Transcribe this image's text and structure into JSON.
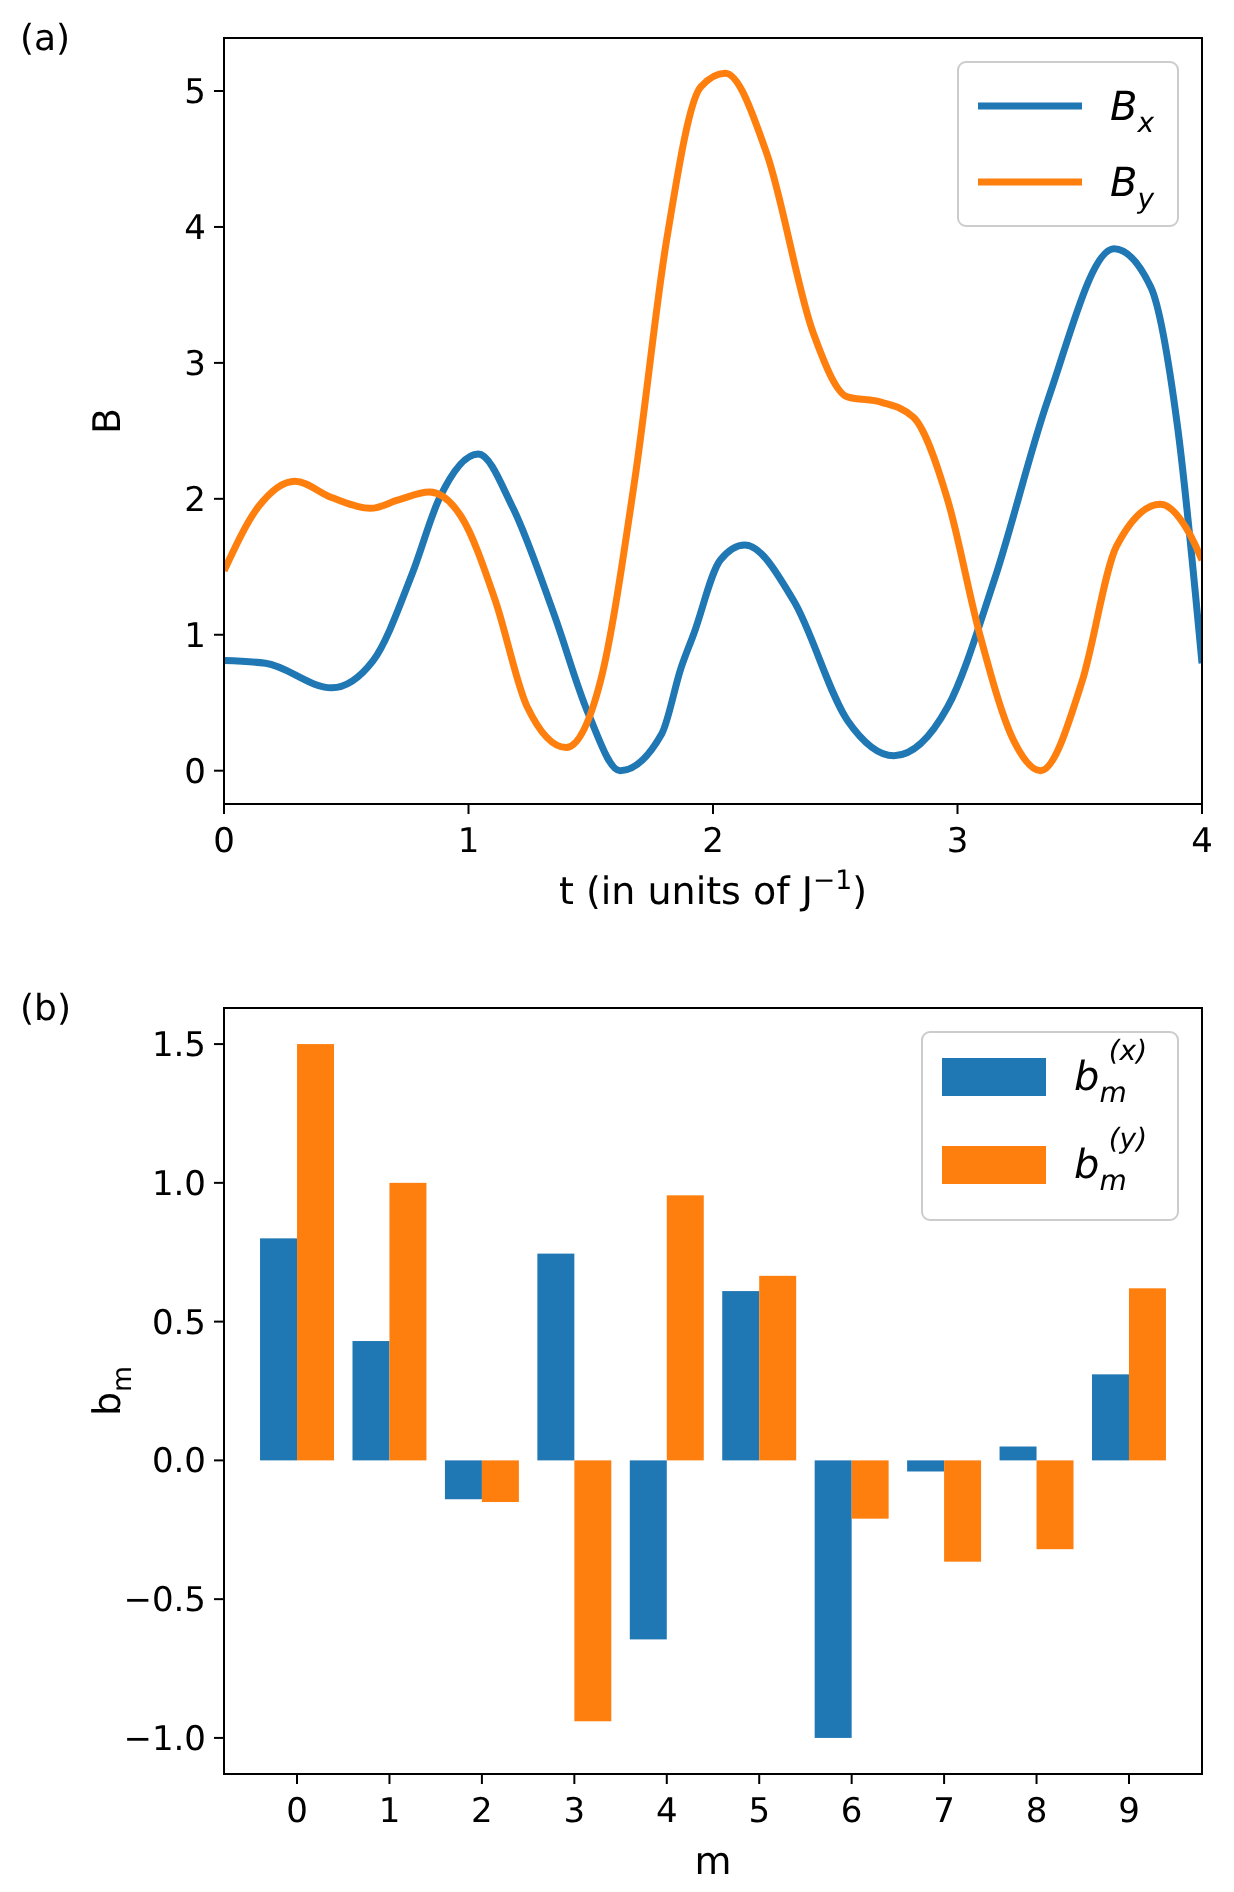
{
  "chart_data": [
    {
      "type": "line",
      "title": "(a)",
      "xlabel": "t (in units of J$^{−1}$)",
      "ylabel": "B",
      "xlim": [
        0,
        4
      ],
      "xticks": [
        0,
        1,
        2,
        3,
        4
      ],
      "ylim": [
        -0.245,
        5.39
      ],
      "yticks": [
        0,
        1,
        2,
        3,
        4,
        5
      ],
      "legend": "top right",
      "grid": false,
      "series": [
        {
          "name": "B$_{x}$",
          "color": "#1f77b4",
          "x": [
            0,
            0.17,
            0.44,
            0.61,
            0.77,
            0.88,
            1.04,
            1.18,
            1.35,
            1.49,
            1.62,
            1.79,
            1.87,
            1.92,
            2.03,
            2.13,
            2.33,
            2.55,
            2.74,
            2.96,
            3.15,
            3.37,
            3.64,
            3.79,
            3.9,
            4.0
          ],
          "values": [
            0.81,
            0.79,
            0.61,
            0.81,
            1.45,
            2.0,
            2.33,
            1.94,
            1.15,
            0.42,
            0.0,
            0.27,
            0.76,
            1.0,
            1.55,
            1.66,
            1.25,
            0.37,
            0.11,
            0.47,
            1.4,
            2.73,
            3.84,
            3.56,
            2.53,
            0.79
          ]
        },
        {
          "name": "B$_{y}$",
          "color": "#ff7f0e",
          "x": [
            0,
            0.14,
            0.29,
            0.44,
            0.6,
            0.71,
            0.84,
            0.97,
            1.11,
            1.24,
            1.4,
            1.54,
            1.68,
            1.81,
            1.95,
            2.05,
            2.22,
            2.41,
            2.55,
            2.69,
            2.82,
            2.96,
            3.09,
            3.23,
            3.34,
            3.51,
            3.65,
            3.83,
            3.95,
            4.0
          ],
          "values": [
            1.47,
            1.94,
            2.13,
            2.01,
            1.93,
            1.99,
            2.05,
            1.87,
            1.25,
            0.47,
            0.17,
            0.66,
            2.14,
            3.9,
            5.03,
            5.13,
            4.54,
            3.22,
            2.75,
            2.71,
            2.6,
            1.99,
            1.01,
            0.22,
            0.0,
            0.66,
            1.65,
            1.96,
            1.74,
            1.55
          ]
        }
      ]
    },
    {
      "type": "bar",
      "title": "(b)",
      "xlabel": "m",
      "ylabel": "b$_{m}$",
      "categories": [
        "0",
        "1",
        "2",
        "3",
        "4",
        "5",
        "6",
        "7",
        "8",
        "9"
      ],
      "ylim": [
        -1.13,
        1.63
      ],
      "yticks": [
        {
          "value": -1,
          "label": "−1.0"
        },
        {
          "value": -0.5,
          "label": "−0.5"
        },
        {
          "value": 0,
          "label": "0.0"
        },
        {
          "value": 0.5,
          "label": "0.5"
        },
        {
          "value": 1,
          "label": "1.0"
        },
        {
          "value": 1.5,
          "label": "1.5"
        }
      ],
      "legend": "top right",
      "grid": false,
      "series": [
        {
          "name": "b$_{m}$$^{(x)}$",
          "color": "#1f77b4",
          "values": [
            0.8,
            0.43,
            -0.14,
            0.745,
            -0.645,
            0.61,
            -1.0,
            -0.04,
            0.05,
            0.31
          ]
        },
        {
          "name": "b$_{m}$$^{(y)}$",
          "color": "#ff7f0e",
          "values": [
            1.5,
            1.0,
            -0.15,
            -0.94,
            0.955,
            0.665,
            -0.21,
            -0.365,
            -0.32,
            0.62
          ]
        }
      ]
    }
  ]
}
